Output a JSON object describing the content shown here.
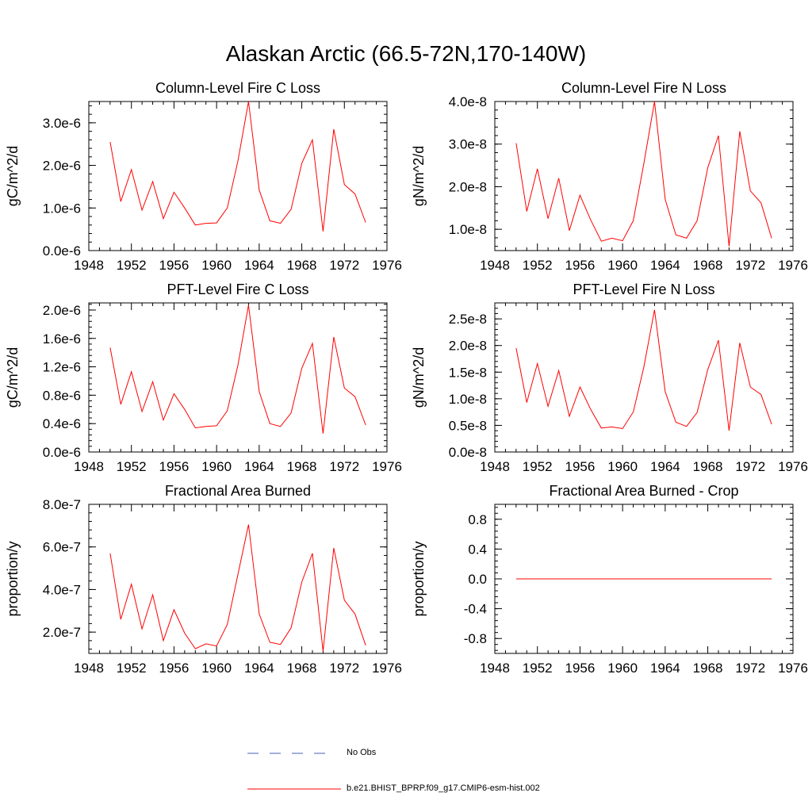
{
  "figure": {
    "title": "Alaskan Arctic (66.5-72N,170-140W)"
  },
  "legend": [
    {
      "label": "No Obs",
      "color": "#4a5fb5",
      "style": "dashed"
    },
    {
      "label": "b.e21.BHIST_BPRP.f09_g17.CMIP6-esm-hist.002",
      "color": "#ff0000",
      "style": "solid"
    }
  ],
  "chart_data": [
    {
      "type": "line",
      "title": "Column-Level Fire C Loss",
      "ylabel": "gC/m^2/d",
      "xlim": [
        1948,
        1976
      ],
      "ylim": [
        0,
        3.5e-06
      ],
      "xticks": [
        1948,
        1952,
        1956,
        1960,
        1964,
        1968,
        1972,
        1976
      ],
      "yticks": [
        0,
        1e-06,
        2e-06,
        3e-06
      ],
      "ytick_labels": [
        "0.0e-6",
        "1.0e-6",
        "2.0e-6",
        "3.0e-6"
      ],
      "series_color": "#ff0000",
      "x": [
        1950,
        1951,
        1952,
        1953,
        1954,
        1955,
        1956,
        1957,
        1958,
        1959,
        1960,
        1961,
        1962,
        1963,
        1964,
        1965,
        1966,
        1967,
        1968,
        1969,
        1970,
        1971,
        1972,
        1973,
        1974
      ],
      "series": [
        {
          "values": [
            2.55e-06,
            1.15e-06,
            1.9e-06,
            9.5e-07,
            1.62e-06,
            7.5e-07,
            1.37e-06,
            1e-06,
            6e-07,
            6.4e-07,
            6.5e-07,
            1e-06,
            2.1e-06,
            3.5e-06,
            1.42e-06,
            7e-07,
            6.4e-07,
            9.7e-07,
            2.05e-06,
            2.6e-06,
            4.5e-07,
            2.85e-06,
            1.55e-06,
            1.33e-06,
            6.6e-07
          ]
        }
      ]
    },
    {
      "type": "line",
      "title": "Column-Level Fire N Loss",
      "ylabel": "gN/m^2/d",
      "xlim": [
        1948,
        1976
      ],
      "ylim": [
        5e-09,
        4e-08
      ],
      "xticks": [
        1948,
        1952,
        1956,
        1960,
        1964,
        1968,
        1972,
        1976
      ],
      "yticks": [
        1e-08,
        2e-08,
        3e-08,
        4e-08
      ],
      "ytick_labels": [
        "1.0e-8",
        "2.0e-8",
        "3.0e-8",
        "4.0e-8"
      ],
      "series_color": "#ff0000",
      "x": [
        1950,
        1951,
        1952,
        1953,
        1954,
        1955,
        1956,
        1957,
        1958,
        1959,
        1960,
        1961,
        1962,
        1963,
        1964,
        1965,
        1966,
        1967,
        1968,
        1969,
        1970,
        1971,
        1972,
        1973,
        1974
      ],
      "series": [
        {
          "values": [
            3.02e-08,
            1.42e-08,
            2.42e-08,
            1.25e-08,
            2.2e-08,
            9.7e-09,
            1.8e-08,
            1.22e-08,
            7.2e-09,
            7.9e-09,
            7.3e-09,
            1.2e-08,
            2.55e-08,
            4e-08,
            1.7e-08,
            8.7e-09,
            7.9e-09,
            1.2e-08,
            2.45e-08,
            3.2e-08,
            6e-09,
            3.3e-08,
            1.9e-08,
            1.62e-08,
            7.9e-09
          ]
        }
      ]
    },
    {
      "type": "line",
      "title": "PFT-Level Fire C Loss",
      "ylabel": "gC/m^2/d",
      "xlim": [
        1948,
        1976
      ],
      "ylim": [
        0,
        2.1e-06
      ],
      "xticks": [
        1948,
        1952,
        1956,
        1960,
        1964,
        1968,
        1972,
        1976
      ],
      "yticks": [
        0,
        4e-07,
        8e-07,
        1.2e-06,
        1.6e-06,
        2e-06
      ],
      "ytick_labels": [
        "0.0e-6",
        "0.4e-6",
        "0.8e-6",
        "1.2e-6",
        "1.6e-6",
        "2.0e-6"
      ],
      "series_color": "#ff0000",
      "x": [
        1950,
        1951,
        1952,
        1953,
        1954,
        1955,
        1956,
        1957,
        1958,
        1959,
        1960,
        1961,
        1962,
        1963,
        1964,
        1965,
        1966,
        1967,
        1968,
        1969,
        1970,
        1971,
        1972,
        1973,
        1974
      ],
      "series": [
        {
          "values": [
            1.47e-06,
            6.7e-07,
            1.13e-06,
            5.7e-07,
            9.9e-07,
            4.5e-07,
            8.2e-07,
            6e-07,
            3.4e-07,
            3.6e-07,
            3.7e-07,
            5.8e-07,
            1.22e-06,
            2.07e-06,
            8.5e-07,
            4e-07,
            3.6e-07,
            5.5e-07,
            1.18e-06,
            1.53e-06,
            2.6e-07,
            1.62e-06,
            9e-07,
            7.8e-07,
            3.8e-07
          ]
        }
      ]
    },
    {
      "type": "line",
      "title": "PFT-Level Fire N Loss",
      "ylabel": "gN/m^2/d",
      "xlim": [
        1948,
        1976
      ],
      "ylim": [
        0,
        2.8e-08
      ],
      "xticks": [
        1948,
        1952,
        1956,
        1960,
        1964,
        1968,
        1972,
        1976
      ],
      "yticks": [
        0,
        5e-09,
        1e-08,
        1.5e-08,
        2e-08,
        2.5e-08
      ],
      "ytick_labels": [
        "0.0e-8",
        "0.5e-8",
        "1.0e-8",
        "1.5e-8",
        "2.0e-8",
        "2.5e-8"
      ],
      "series_color": "#ff0000",
      "x": [
        1950,
        1951,
        1952,
        1953,
        1954,
        1955,
        1956,
        1957,
        1958,
        1959,
        1960,
        1961,
        1962,
        1963,
        1964,
        1965,
        1966,
        1967,
        1968,
        1969,
        1970,
        1971,
        1972,
        1973,
        1974
      ],
      "series": [
        {
          "values": [
            1.95e-08,
            9.3e-09,
            1.66e-08,
            8.6e-09,
            1.53e-08,
            6.7e-09,
            1.22e-08,
            8e-09,
            4.5e-09,
            4.7e-09,
            4.4e-09,
            7.5e-09,
            1.6e-08,
            2.67e-08,
            1.13e-08,
            5.6e-09,
            4.8e-09,
            7.4e-09,
            1.55e-08,
            2.1e-08,
            4e-09,
            2.05e-08,
            1.22e-08,
            1.08e-08,
            5.2e-09
          ]
        }
      ]
    },
    {
      "type": "line",
      "title": "Fractional Area Burned",
      "ylabel": "proportion/y",
      "xlim": [
        1948,
        1976
      ],
      "ylim": [
        1e-07,
        8e-07
      ],
      "xticks": [
        1948,
        1952,
        1956,
        1960,
        1964,
        1968,
        1972,
        1976
      ],
      "yticks": [
        2e-07,
        4e-07,
        6e-07,
        8e-07
      ],
      "ytick_labels": [
        "2.0e-7",
        "4.0e-7",
        "6.0e-7",
        "8.0e-7"
      ],
      "series_color": "#ff0000",
      "x": [
        1950,
        1951,
        1952,
        1953,
        1954,
        1955,
        1956,
        1957,
        1958,
        1959,
        1960,
        1961,
        1962,
        1963,
        1964,
        1965,
        1966,
        1967,
        1968,
        1969,
        1970,
        1971,
        1972,
        1973,
        1974
      ],
      "series": [
        {
          "values": [
            5.7e-07,
            2.6e-07,
            4.25e-07,
            2.15e-07,
            3.75e-07,
            1.6e-07,
            3.05e-07,
            1.95e-07,
            1.22e-07,
            1.45e-07,
            1.35e-07,
            2.35e-07,
            4.7e-07,
            7.05e-07,
            2.85e-07,
            1.52e-07,
            1.42e-07,
            2.2e-07,
            4.35e-07,
            5.7e-07,
            1.1e-07,
            5.95e-07,
            3.5e-07,
            2.85e-07,
            1.38e-07
          ]
        }
      ]
    },
    {
      "type": "line",
      "title": "Fractional Area Burned - Crop",
      "ylabel": "proportion/y",
      "xlim": [
        1948,
        1976
      ],
      "ylim": [
        -1.0,
        1.0
      ],
      "xticks": [
        1948,
        1952,
        1956,
        1960,
        1964,
        1968,
        1972,
        1976
      ],
      "yticks": [
        -0.8,
        -0.4,
        0.0,
        0.4,
        0.8
      ],
      "ytick_labels": [
        "-0.8",
        "-0.4",
        "0.0",
        "0.4",
        "0.8"
      ],
      "series_color": "#ff0000",
      "x": [
        1950,
        1951,
        1952,
        1953,
        1954,
        1955,
        1956,
        1957,
        1958,
        1959,
        1960,
        1961,
        1962,
        1963,
        1964,
        1965,
        1966,
        1967,
        1968,
        1969,
        1970,
        1971,
        1972,
        1973,
        1974
      ],
      "series": [
        {
          "values": [
            0,
            0,
            0,
            0,
            0,
            0,
            0,
            0,
            0,
            0,
            0,
            0,
            0,
            0,
            0,
            0,
            0,
            0,
            0,
            0,
            0,
            0,
            0,
            0,
            0
          ]
        }
      ]
    }
  ]
}
